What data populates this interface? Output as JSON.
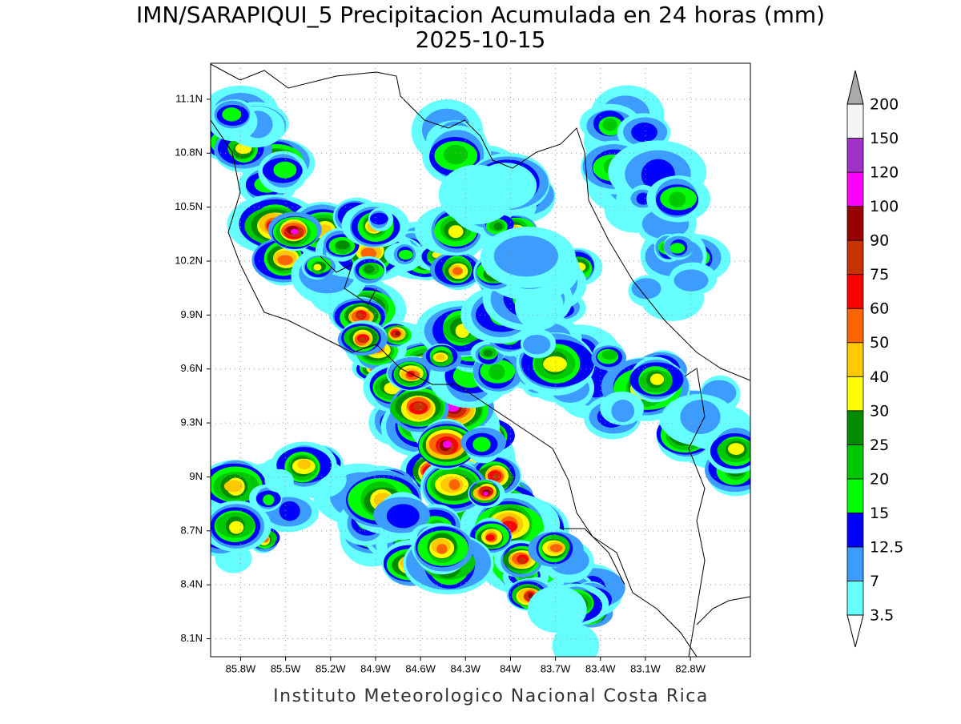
{
  "title": "IMN/SARAPIQUI_5 Precipitacion Acumulada en 24 horas (mm)",
  "subtitle": "2025-10-15",
  "map": {
    "lonlim": [
      -86.0,
      -82.4
    ],
    "latlim": [
      8.0,
      11.3
    ],
    "lat_ticks": [
      {
        "value": 8.1,
        "label": "8.1N"
      },
      {
        "value": 8.4,
        "label": "8.4N"
      },
      {
        "value": 8.7,
        "label": "8.7N"
      },
      {
        "value": 9.0,
        "label": "9N"
      },
      {
        "value": 9.3,
        "label": "9.3N"
      },
      {
        "value": 9.6,
        "label": "9.6N"
      },
      {
        "value": 9.9,
        "label": "9.9N"
      },
      {
        "value": 10.2,
        "label": "10.2N"
      },
      {
        "value": 10.5,
        "label": "10.5N"
      },
      {
        "value": 10.8,
        "label": "10.8N"
      },
      {
        "value": 11.1,
        "label": "11.1N"
      }
    ],
    "lon_ticks": [
      {
        "value": -85.8,
        "label": "85.8W"
      },
      {
        "value": -85.5,
        "label": "85.5W"
      },
      {
        "value": -85.2,
        "label": "85.2W"
      },
      {
        "value": -84.9,
        "label": "84.9W"
      },
      {
        "value": -84.6,
        "label": "84.6W"
      },
      {
        "value": -84.3,
        "label": "84.3W"
      },
      {
        "value": -84.0,
        "label": "84W"
      },
      {
        "value": -83.7,
        "label": "83.7W"
      },
      {
        "value": -83.4,
        "label": "83.4W"
      },
      {
        "value": -83.1,
        "label": "83.1W"
      },
      {
        "value": -82.8,
        "label": "82.8W"
      }
    ],
    "grid": true
  },
  "colorbar": {
    "levels": [
      3.5,
      7,
      12.5,
      15,
      20,
      25,
      30,
      40,
      50,
      60,
      75,
      90,
      100,
      120,
      150,
      200
    ],
    "colors": [
      "#66ffff",
      "#3c9cff",
      "#0000ff",
      "#00ff00",
      "#00c800",
      "#008c00",
      "#ffff00",
      "#ffc800",
      "#ff6400",
      "#ff0000",
      "#c83200",
      "#9b0000",
      "#ff00ff",
      "#a032c8",
      "#f5f5f5"
    ],
    "under_color": "#ffffff",
    "over_color": "#aaaaaa"
  },
  "footer": "Instituto Meteorologico Nacional Costa Rica"
}
